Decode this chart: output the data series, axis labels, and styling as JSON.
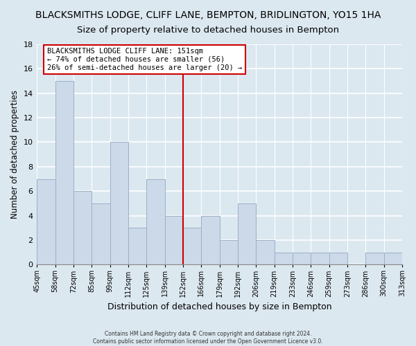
{
  "title": "BLACKSMITHS LODGE, CLIFF LANE, BEMPTON, BRIDLINGTON, YO15 1HA",
  "subtitle": "Size of property relative to detached houses in Bempton",
  "xlabel": "Distribution of detached houses by size in Bempton",
  "ylabel": "Number of detached properties",
  "bin_labels": [
    "45sqm",
    "58sqm",
    "72sqm",
    "85sqm",
    "99sqm",
    "112sqm",
    "125sqm",
    "139sqm",
    "152sqm",
    "166sqm",
    "179sqm",
    "192sqm",
    "206sqm",
    "219sqm",
    "233sqm",
    "246sqm",
    "259sqm",
    "273sqm",
    "286sqm",
    "300sqm",
    "313sqm"
  ],
  "bar_heights": [
    7,
    15,
    6,
    5,
    10,
    3,
    7,
    4,
    3,
    4,
    2,
    5,
    2,
    1,
    1,
    1,
    1,
    0,
    1,
    1
  ],
  "bar_color": "#ccd9e8",
  "bar_edge_color": "#9ab0c8",
  "vline_x_index": 8,
  "vline_color": "#cc0000",
  "ylim": [
    0,
    18
  ],
  "yticks": [
    0,
    2,
    4,
    6,
    8,
    10,
    12,
    14,
    16,
    18
  ],
  "annotation_title": "BLACKSMITHS LODGE CLIFF LANE: 151sqm",
  "annotation_line1": "← 74% of detached houses are smaller (56)",
  "annotation_line2": "26% of semi-detached houses are larger (20) →",
  "annotation_box_color": "#ffffff",
  "annotation_box_edge": "#cc0000",
  "footer_line1": "Contains HM Land Registry data © Crown copyright and database right 2024.",
  "footer_line2": "Contains public sector information licensed under the Open Government Licence v3.0.",
  "background_color": "#dce8f0",
  "title_fontsize": 10,
  "subtitle_fontsize": 9.5
}
